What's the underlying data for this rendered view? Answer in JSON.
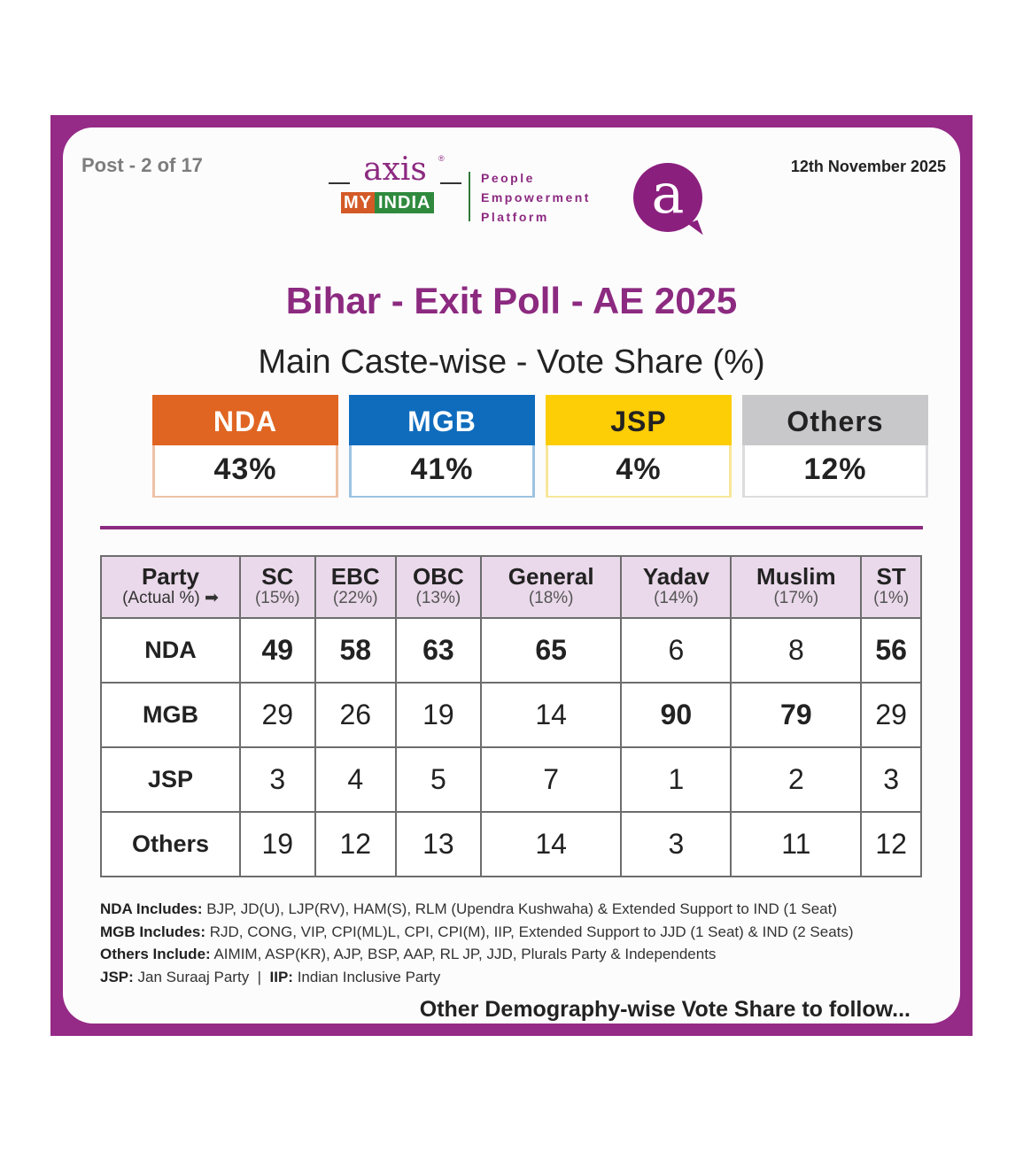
{
  "header": {
    "post_label": "Post - 2 of 17",
    "date": "12th November 2025",
    "logo": {
      "axis_text": "axis",
      "registered_mark": "®",
      "my_text": "MY",
      "india_text": "INDIA",
      "tagline": [
        "People",
        "Empowerment",
        "Platform"
      ],
      "bubble_letter": "a"
    }
  },
  "title": "Bihar - Exit Poll - AE 2025",
  "subtitle": "Main Caste-wise - Vote Share (%)",
  "summary": [
    {
      "party": "NDA",
      "share": "43%",
      "head_color": "#e06522",
      "head_text_color": "#ffffff",
      "border_color": "#eec2a6"
    },
    {
      "party": "MGB",
      "share": "41%",
      "head_color": "#0f6cbd",
      "head_text_color": "#ffffff",
      "border_color": "#9cc3e2"
    },
    {
      "party": "JSP",
      "share": "4%",
      "head_color": "#fdcd05",
      "head_text_color": "#222222",
      "border_color": "#f8e69a"
    },
    {
      "party": "Others",
      "share": "12%",
      "head_color": "#c8c8cb",
      "head_text_color": "#222222",
      "border_color": "#dcdcdf"
    }
  ],
  "table": {
    "corner": {
      "label": "Party",
      "sub": "(Actual %)",
      "arrow_icon": "➡"
    },
    "columns": [
      {
        "name": "SC",
        "actual": "(15%)"
      },
      {
        "name": "EBC",
        "actual": "(22%)"
      },
      {
        "name": "OBC",
        "actual": "(13%)"
      },
      {
        "name": "General",
        "actual": "(18%)"
      },
      {
        "name": "Yadav",
        "actual": "(14%)"
      },
      {
        "name": "Muslim",
        "actual": "(17%)"
      },
      {
        "name": "ST",
        "actual": "(1%)"
      }
    ],
    "rows": [
      {
        "party": "NDA",
        "values": [
          "49",
          "58",
          "63",
          "65",
          "6",
          "8",
          "56"
        ],
        "bold": [
          true,
          true,
          true,
          true,
          false,
          false,
          true
        ]
      },
      {
        "party": "MGB",
        "values": [
          "29",
          "26",
          "19",
          "14",
          "90",
          "79",
          "29"
        ],
        "bold": [
          false,
          false,
          false,
          false,
          true,
          true,
          false
        ]
      },
      {
        "party": "JSP",
        "values": [
          "3",
          "4",
          "5",
          "7",
          "1",
          "2",
          "3"
        ],
        "bold": [
          false,
          false,
          false,
          false,
          false,
          false,
          false
        ]
      },
      {
        "party": "Others",
        "values": [
          "19",
          "12",
          "13",
          "14",
          "3",
          "11",
          "12"
        ],
        "bold": [
          false,
          false,
          false,
          false,
          false,
          false,
          false
        ]
      }
    ]
  },
  "notes": [
    {
      "label": "NDA Includes:",
      "text": " BJP, JD(U), LJP(RV), HAM(S), RLM (Upendra Kushwaha) & Extended Support to IND (1 Seat)"
    },
    {
      "label": "MGB Includes:",
      "text": " RJD, CONG, VIP, CPI(ML)L, CPI, CPI(M), IIP, Extended Support to JJD (1 Seat) & IND (2 Seats)"
    },
    {
      "label": "Others Include:",
      "text": " AIMIM, ASP(KR), AJP, BSP, AAP, RL JP, JJD, Plurals Party & Independents"
    },
    {
      "label": "JSP:",
      "text": " Jan Suraaj Party  |  ",
      "label2": "IIP:",
      "text2": " Indian Inclusive Party"
    }
  ],
  "footer": "Other Demography-wise Vote Share to follow...",
  "chart_data": {
    "type": "table",
    "title": "Bihar - Exit Poll - AE 2025",
    "subtitle": "Main Caste-wise - Vote Share (%)",
    "overall_vote_share": {
      "NDA": 43,
      "MGB": 41,
      "JSP": 4,
      "Others": 12
    },
    "categories": [
      "SC",
      "EBC",
      "OBC",
      "General",
      "Yadav",
      "Muslim",
      "ST"
    ],
    "actual_population_pct": [
      15,
      22,
      13,
      18,
      14,
      17,
      1
    ],
    "series": [
      {
        "name": "NDA",
        "values": [
          49,
          58,
          63,
          65,
          6,
          8,
          56
        ]
      },
      {
        "name": "MGB",
        "values": [
          29,
          26,
          19,
          14,
          90,
          79,
          29
        ]
      },
      {
        "name": "JSP",
        "values": [
          3,
          4,
          5,
          7,
          1,
          2,
          3
        ]
      },
      {
        "name": "Others",
        "values": [
          19,
          12,
          13,
          14,
          3,
          11,
          12
        ]
      }
    ]
  }
}
